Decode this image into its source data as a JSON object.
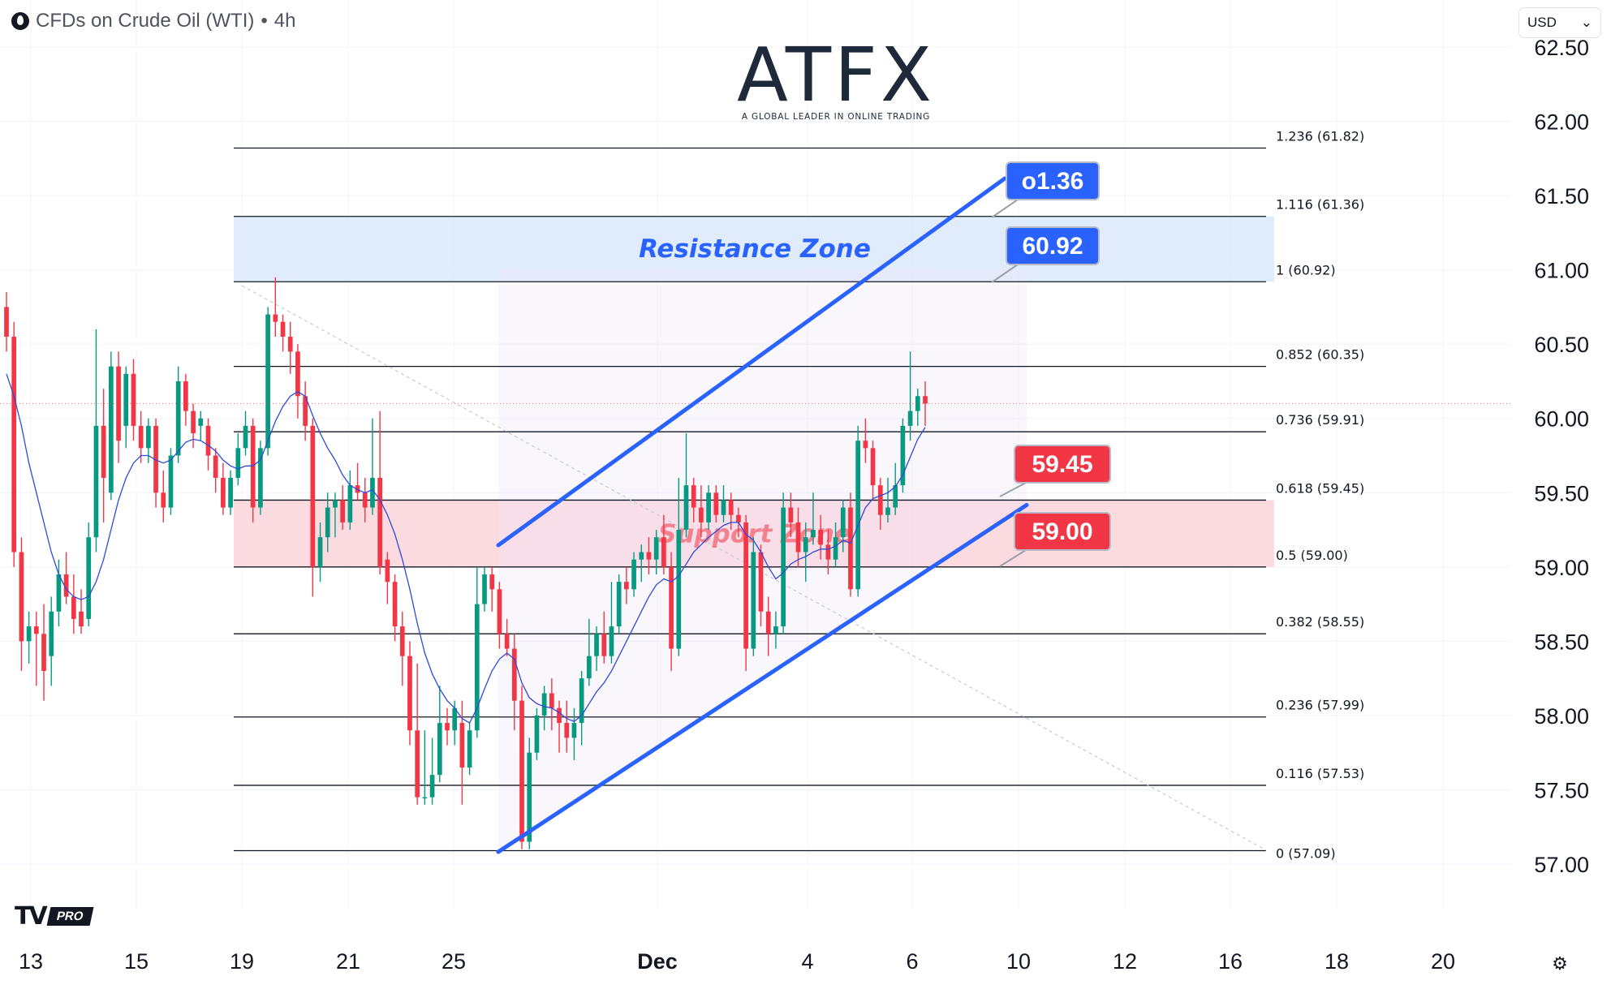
{
  "header": {
    "symbol": "CFDs on Crude Oil (WTI)",
    "separator": "•",
    "interval": "4h"
  },
  "currency_select": {
    "value": "USD"
  },
  "logo": {
    "word": "ATFX",
    "tagline": "A GLOBAL LEADER IN ONLINE TRADING"
  },
  "branding": {
    "mark": "TV",
    "badge": "PRO"
  },
  "icons": {
    "symbol": "oil-drop-icon",
    "dropdown": "chevron-down-icon",
    "settings": "gear-icon"
  },
  "colors": {
    "up": "#089981",
    "down": "#f23645",
    "channel": "#2962ff",
    "ma": "#2f4ad8",
    "resistance_zone": "#dbe8fb",
    "support_zone": "#fbd5da",
    "fib": "#131722"
  },
  "chart_data": {
    "type": "candlestick",
    "title": "",
    "ylim": [
      57.0,
      62.5
    ],
    "y_ticks": [
      "62.50",
      "62.00",
      "61.50",
      "61.00",
      "60.50",
      "60.00",
      "59.50",
      "59.00",
      "58.50",
      "58.00",
      "57.50",
      "57.00"
    ],
    "x_ticks": [
      "13",
      "15",
      "19",
      "21",
      "25",
      "Dec",
      "4",
      "6",
      "10",
      "12",
      "16",
      "18",
      "20"
    ],
    "grid": true,
    "current_price": 60.1,
    "candles": [
      [
        60.75,
        60.55,
        60.85,
        60.45
      ],
      [
        60.55,
        59.1,
        60.65,
        59.0
      ],
      [
        59.1,
        58.5,
        59.2,
        58.3
      ],
      [
        58.5,
        58.6,
        58.7,
        58.35
      ],
      [
        58.6,
        58.55,
        58.7,
        58.2
      ],
      [
        58.55,
        58.3,
        58.75,
        58.1
      ],
      [
        58.4,
        58.7,
        58.8,
        58.2
      ],
      [
        58.7,
        58.95,
        59.05,
        58.6
      ],
      [
        58.95,
        58.8,
        59.1,
        58.75
      ],
      [
        58.8,
        58.65,
        58.95,
        58.55
      ],
      [
        58.7,
        58.6,
        58.85,
        58.55
      ],
      [
        58.65,
        59.2,
        59.3,
        58.6
      ],
      [
        59.2,
        59.95,
        60.6,
        59.1
      ],
      [
        59.95,
        59.6,
        60.2,
        59.3
      ],
      [
        59.5,
        60.35,
        60.45,
        59.45
      ],
      [
        60.35,
        59.85,
        60.45,
        59.7
      ],
      [
        59.95,
        60.3,
        60.35,
        59.8
      ],
      [
        60.3,
        59.95,
        60.4,
        59.85
      ],
      [
        59.95,
        59.8,
        60.05,
        59.7
      ],
      [
        59.8,
        59.95,
        60.0,
        59.7
      ],
      [
        59.95,
        59.5,
        60.0,
        59.4
      ],
      [
        59.5,
        59.4,
        59.65,
        59.3
      ],
      [
        59.4,
        59.75,
        59.8,
        59.35
      ],
      [
        59.75,
        60.25,
        60.35,
        59.7
      ],
      [
        60.25,
        60.05,
        60.3,
        59.95
      ],
      [
        60.05,
        59.9,
        60.1,
        59.8
      ],
      [
        59.95,
        60.0,
        60.05,
        59.85
      ],
      [
        59.95,
        59.75,
        60.0,
        59.65
      ],
      [
        59.75,
        59.6,
        59.8,
        59.5
      ],
      [
        59.6,
        59.4,
        59.7,
        59.35
      ],
      [
        59.4,
        59.6,
        59.65,
        59.35
      ],
      [
        59.6,
        59.8,
        59.9,
        59.55
      ],
      [
        59.8,
        59.95,
        60.05,
        59.75
      ],
      [
        59.95,
        59.4,
        60.0,
        59.3
      ],
      [
        59.4,
        59.8,
        59.85,
        59.35
      ],
      [
        59.8,
        60.7,
        60.75,
        59.75
      ],
      [
        60.7,
        60.65,
        60.95,
        60.55
      ],
      [
        60.65,
        60.55,
        60.7,
        60.45
      ],
      [
        60.55,
        60.45,
        60.65,
        60.3
      ],
      [
        60.45,
        60.15,
        60.5,
        60.0
      ],
      [
        60.15,
        59.95,
        60.25,
        59.85
      ],
      [
        59.95,
        59.0,
        60.0,
        58.8
      ],
      [
        59.0,
        59.2,
        59.3,
        58.9
      ],
      [
        59.2,
        59.4,
        59.5,
        59.1
      ],
      [
        59.4,
        59.45,
        59.5,
        59.2
      ],
      [
        59.45,
        59.3,
        59.55,
        59.25
      ],
      [
        59.3,
        59.55,
        59.65,
        59.25
      ],
      [
        59.55,
        59.5,
        59.7,
        59.45
      ],
      [
        59.5,
        59.4,
        59.6,
        59.3
      ],
      [
        59.4,
        59.6,
        60.0,
        59.35
      ],
      [
        59.6,
        59.0,
        60.05,
        58.95
      ],
      [
        59.05,
        58.9,
        59.1,
        58.75
      ],
      [
        58.9,
        58.6,
        58.95,
        58.5
      ],
      [
        58.6,
        58.4,
        58.7,
        58.2
      ],
      [
        58.4,
        57.9,
        58.5,
        57.8
      ],
      [
        57.9,
        57.45,
        58.35,
        57.4
      ],
      [
        57.45,
        57.45,
        57.9,
        57.4
      ],
      [
        57.45,
        57.6,
        57.85,
        57.4
      ],
      [
        57.6,
        57.95,
        58.2,
        57.55
      ],
      [
        57.95,
        57.9,
        58.05,
        57.8
      ],
      [
        57.9,
        58.05,
        58.1,
        57.8
      ],
      [
        57.95,
        57.65,
        58.1,
        57.4
      ],
      [
        57.65,
        57.9,
        57.95,
        57.6
      ],
      [
        57.9,
        58.75,
        59.0,
        57.85
      ],
      [
        58.75,
        58.95,
        59.0,
        58.7
      ],
      [
        58.95,
        58.85,
        59.0,
        58.7
      ],
      [
        58.85,
        58.55,
        58.9,
        58.45
      ],
      [
        58.55,
        58.45,
        58.65,
        58.4
      ],
      [
        58.45,
        58.1,
        58.55,
        57.9
      ],
      [
        58.1,
        57.15,
        58.2,
        57.1
      ],
      [
        57.15,
        57.75,
        57.85,
        57.1
      ],
      [
        57.75,
        58.0,
        58.05,
        57.7
      ],
      [
        58.0,
        58.15,
        58.2,
        57.9
      ],
      [
        58.15,
        58.05,
        58.25,
        57.9
      ],
      [
        58.05,
        57.95,
        58.1,
        57.75
      ],
      [
        57.95,
        57.85,
        58.1,
        57.75
      ],
      [
        57.85,
        57.95,
        58.05,
        57.7
      ],
      [
        57.95,
        58.25,
        58.3,
        57.8
      ],
      [
        58.25,
        58.4,
        58.65,
        58.2
      ],
      [
        58.4,
        58.55,
        58.6,
        58.3
      ],
      [
        58.55,
        58.4,
        58.7,
        58.35
      ],
      [
        58.4,
        58.6,
        58.9,
        58.35
      ],
      [
        58.6,
        58.9,
        58.95,
        58.55
      ],
      [
        58.9,
        58.85,
        59.0,
        58.75
      ],
      [
        58.85,
        59.05,
        59.1,
        58.8
      ],
      [
        59.05,
        59.1,
        59.15,
        58.9
      ],
      [
        59.1,
        59.05,
        59.2,
        58.95
      ],
      [
        59.05,
        59.2,
        59.25,
        58.95
      ],
      [
        59.2,
        59.0,
        59.35,
        58.95
      ],
      [
        59.0,
        58.45,
        59.1,
        58.3
      ],
      [
        58.45,
        59.25,
        59.6,
        58.4
      ],
      [
        59.25,
        59.55,
        59.9,
        59.2
      ],
      [
        59.55,
        59.4,
        59.6,
        59.3
      ],
      [
        59.4,
        59.3,
        59.55,
        59.2
      ],
      [
        59.3,
        59.5,
        59.55,
        59.25
      ],
      [
        59.5,
        59.35,
        59.55,
        59.3
      ],
      [
        59.35,
        59.45,
        59.55,
        59.3
      ],
      [
        59.45,
        59.35,
        59.5,
        59.25
      ],
      [
        59.35,
        59.3,
        59.4,
        59.2
      ],
      [
        59.3,
        58.45,
        59.35,
        58.3
      ],
      [
        58.45,
        59.1,
        59.2,
        58.4
      ],
      [
        59.1,
        58.7,
        59.15,
        58.6
      ],
      [
        58.7,
        58.55,
        58.8,
        58.4
      ],
      [
        58.55,
        58.6,
        58.7,
        58.45
      ],
      [
        58.6,
        59.4,
        59.5,
        58.55
      ],
      [
        59.4,
        59.3,
        59.5,
        59.2
      ],
      [
        59.3,
        59.1,
        59.4,
        59.0
      ],
      [
        59.1,
        59.2,
        59.3,
        58.9
      ],
      [
        59.2,
        59.25,
        59.5,
        59.15
      ],
      [
        59.25,
        59.15,
        59.35,
        59.05
      ],
      [
        59.15,
        59.05,
        59.25,
        58.95
      ],
      [
        59.05,
        59.2,
        59.3,
        59.0
      ],
      [
        59.2,
        59.4,
        59.45,
        59.1
      ],
      [
        59.4,
        58.85,
        59.5,
        58.8
      ],
      [
        58.85,
        59.85,
        59.95,
        58.8
      ],
      [
        59.85,
        59.8,
        60.0,
        59.7
      ],
      [
        59.8,
        59.55,
        59.85,
        59.45
      ],
      [
        59.55,
        59.35,
        59.6,
        59.25
      ],
      [
        59.35,
        59.4,
        59.6,
        59.3
      ],
      [
        59.4,
        59.55,
        59.7,
        59.35
      ],
      [
        59.55,
        59.95,
        60.0,
        59.5
      ],
      [
        59.95,
        60.05,
        60.45,
        59.85
      ],
      [
        60.05,
        60.15,
        60.2,
        59.95
      ],
      [
        60.15,
        60.1,
        60.25,
        59.95
      ]
    ],
    "moving_averages": [
      {
        "values": [
          60.3,
          60.15,
          59.95,
          59.7,
          59.5,
          59.3,
          59.1,
          58.95,
          58.85,
          58.8,
          58.78,
          58.8,
          58.9,
          59.05,
          59.25,
          59.45,
          59.6,
          59.7,
          59.75,
          59.75,
          59.72,
          59.7,
          59.72,
          59.78,
          59.84,
          59.86,
          59.85,
          59.82,
          59.78,
          59.72,
          59.68,
          59.66,
          59.68,
          59.68,
          59.72,
          59.85,
          59.98,
          60.08,
          60.15,
          60.18,
          60.15,
          60.02,
          59.9,
          59.8,
          59.72,
          59.62,
          59.55,
          59.52,
          59.5,
          59.52,
          59.45,
          59.35,
          59.22,
          59.05,
          58.85,
          58.62,
          58.42,
          58.28,
          58.18,
          58.1,
          58.05,
          57.98,
          57.95,
          58.05,
          58.18,
          58.3,
          58.38,
          58.42,
          58.38,
          58.22,
          58.12,
          58.08,
          58.06,
          58.05,
          58.02,
          57.98,
          57.96,
          58.0,
          58.08,
          58.16,
          58.22,
          58.3,
          58.4,
          58.5,
          58.6,
          58.7,
          58.8,
          58.88,
          58.92,
          58.9,
          58.94,
          59.02,
          59.1,
          59.15,
          59.2,
          59.24,
          59.28,
          59.3,
          59.3,
          59.22,
          59.18,
          59.1,
          59.0,
          58.92,
          58.96,
          59.02,
          59.05,
          59.07,
          59.1,
          59.12,
          59.12,
          59.14,
          59.18,
          59.16,
          59.28,
          59.4,
          59.46,
          59.48,
          59.5,
          59.54,
          59.62,
          59.74,
          59.86,
          59.94
        ]
      },
      {
        "values": [
          null,
          null,
          null,
          null,
          null,
          null,
          null,
          null,
          null,
          null,
          null,
          null,
          null,
          null,
          null,
          null,
          null,
          null,
          null,
          null,
          null,
          null,
          null,
          null,
          null,
          null,
          null,
          null,
          null,
          null,
          null,
          null,
          null,
          null,
          null,
          null,
          null,
          null,
          null,
          null,
          null,
          null,
          null,
          null,
          null,
          null,
          null,
          null,
          null,
          null,
          null,
          null,
          null,
          null,
          null,
          null,
          null,
          null,
          null,
          null,
          null,
          null,
          null,
          null,
          null,
          null,
          null,
          null,
          null,
          null,
          null,
          null,
          null,
          null,
          null,
          null,
          null,
          null,
          null,
          null,
          null,
          null,
          null,
          null,
          null,
          null,
          null,
          null,
          null,
          null,
          null,
          null,
          null,
          null,
          null,
          null,
          null,
          null,
          null,
          null,
          null,
          null,
          null,
          null,
          null,
          null,
          null,
          null,
          null,
          null,
          null,
          null,
          null,
          null,
          null,
          null,
          null,
          null,
          null,
          null,
          null,
          null,
          null,
          null
        ]
      }
    ],
    "fib_levels": [
      {
        "label": "1.236 (61.82)",
        "price": 61.82
      },
      {
        "label": "1.116 (61.36)",
        "price": 61.36
      },
      {
        "label": "1 (60.92)",
        "price": 60.92
      },
      {
        "label": "0.852 (60.35)",
        "price": 60.35
      },
      {
        "label": "0.736 (59.91)",
        "price": 59.91
      },
      {
        "label": "0.618 (59.45)",
        "price": 59.45
      },
      {
        "label": "0.5 (59.00)",
        "price": 59.0
      },
      {
        "label": "0.382 (58.55)",
        "price": 58.55
      },
      {
        "label": "0.236 (57.99)",
        "price": 57.99
      },
      {
        "label": "0.116 (57.53)",
        "price": 57.53
      },
      {
        "label": "0 (57.09)",
        "price": 57.09
      }
    ],
    "zones": [
      {
        "name": "Resistance Zone",
        "from": 60.92,
        "to": 61.36,
        "color": "#dbe8fb",
        "text_color": "#2962ff"
      },
      {
        "name": "Support Zone",
        "from": 59.0,
        "to": 59.45,
        "color": "#fbd5da",
        "text_color": "#f23645"
      }
    ],
    "callouts": [
      {
        "text": "o1.36",
        "color": "#2962ff",
        "price": 61.36
      },
      {
        "text": "60.92",
        "color": "#2962ff",
        "price": 60.92
      },
      {
        "text": "59.45",
        "color": "#f23645",
        "price": 59.45
      },
      {
        "text": "59.00",
        "color": "#f23645",
        "price": 59.0
      }
    ]
  }
}
